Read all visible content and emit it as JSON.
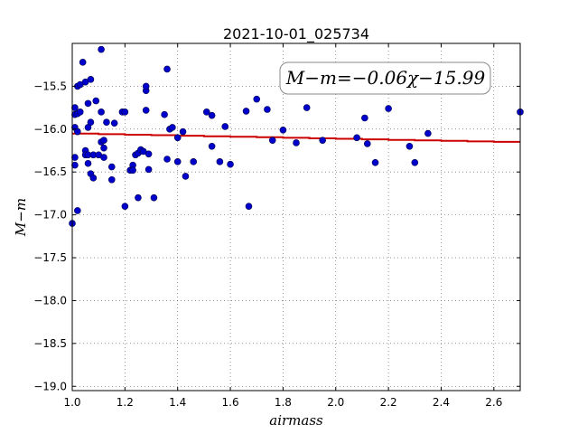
{
  "chart_data": {
    "type": "scatter",
    "title": "2021-10-01_025734",
    "xlabel": "airmass",
    "ylabel": "M−m",
    "xlim": [
      1.0,
      2.7
    ],
    "ylim": [
      -19.05,
      -15.0
    ],
    "y_inverted": true,
    "grid": true,
    "x_ticks": [
      1.0,
      1.2,
      1.4,
      1.6,
      1.8,
      2.0,
      2.2,
      2.4,
      2.6
    ],
    "x_tick_labels": [
      "1.0",
      "1.2",
      "1.4",
      "1.6",
      "1.8",
      "2.0",
      "2.2",
      "2.4",
      "2.6"
    ],
    "y_ticks": [
      -15.5,
      -16.0,
      -16.5,
      -17.0,
      -17.5,
      -18.0,
      -18.5,
      -19.0
    ],
    "y_tick_labels": [
      "−15.5",
      "−16.0",
      "−16.5",
      "−17.0",
      "−17.5",
      "−18.0",
      "−18.5",
      "−19.0"
    ],
    "annotation": "M−m=−0.06χ−15.99",
    "fit": {
      "slope": -0.06,
      "intercept": -15.99,
      "color": "#cc0000"
    },
    "point_color": "#0000cc",
    "points": [
      [
        1.0,
        -17.1
      ],
      [
        1.01,
        -15.98
      ],
      [
        1.01,
        -15.83
      ],
      [
        1.01,
        -15.75
      ],
      [
        1.01,
        -16.33
      ],
      [
        1.01,
        -16.42
      ],
      [
        1.02,
        -15.5
      ],
      [
        1.02,
        -15.82
      ],
      [
        1.02,
        -16.03
      ],
      [
        1.02,
        -16.95
      ],
      [
        1.03,
        -15.48
      ],
      [
        1.03,
        -15.8
      ],
      [
        1.04,
        -15.22
      ],
      [
        1.05,
        -16.25
      ],
      [
        1.05,
        -16.3
      ],
      [
        1.05,
        -15.45
      ],
      [
        1.06,
        -15.98
      ],
      [
        1.06,
        -15.7
      ],
      [
        1.06,
        -16.3
      ],
      [
        1.06,
        -16.4
      ],
      [
        1.07,
        -15.42
      ],
      [
        1.07,
        -16.52
      ],
      [
        1.07,
        -15.92
      ],
      [
        1.08,
        -16.57
      ],
      [
        1.08,
        -16.3
      ],
      [
        1.09,
        -15.67
      ],
      [
        1.1,
        -16.3
      ],
      [
        1.11,
        -15.07
      ],
      [
        1.11,
        -15.8
      ],
      [
        1.11,
        -16.15
      ],
      [
        1.12,
        -16.13
      ],
      [
        1.12,
        -16.22
      ],
      [
        1.12,
        -16.33
      ],
      [
        1.13,
        -15.92
      ],
      [
        1.15,
        -16.59
      ],
      [
        1.15,
        -16.44
      ],
      [
        1.16,
        -15.93
      ],
      [
        1.19,
        -15.8
      ],
      [
        1.2,
        -16.9
      ],
      [
        1.2,
        -15.8
      ],
      [
        1.22,
        -16.48
      ],
      [
        1.23,
        -16.42
      ],
      [
        1.23,
        -16.48
      ],
      [
        1.24,
        -16.3
      ],
      [
        1.25,
        -16.8
      ],
      [
        1.25,
        -16.28
      ],
      [
        1.26,
        -16.24
      ],
      [
        1.27,
        -16.26
      ],
      [
        1.28,
        -15.55
      ],
      [
        1.28,
        -15.5
      ],
      [
        1.28,
        -15.78
      ],
      [
        1.29,
        -16.29
      ],
      [
        1.29,
        -16.47
      ],
      [
        1.31,
        -16.8
      ],
      [
        1.35,
        -15.83
      ],
      [
        1.36,
        -15.3
      ],
      [
        1.36,
        -16.35
      ],
      [
        1.37,
        -16.0
      ],
      [
        1.38,
        -15.98
      ],
      [
        1.4,
        -16.1
      ],
      [
        1.4,
        -16.38
      ],
      [
        1.42,
        -16.03
      ],
      [
        1.43,
        -16.55
      ],
      [
        1.46,
        -16.38
      ],
      [
        1.51,
        -15.8
      ],
      [
        1.53,
        -16.2
      ],
      [
        1.53,
        -15.84
      ],
      [
        1.56,
        -16.38
      ],
      [
        1.58,
        -15.97
      ],
      [
        1.6,
        -16.41
      ],
      [
        1.66,
        -15.79
      ],
      [
        1.67,
        -16.9
      ],
      [
        1.7,
        -15.65
      ],
      [
        1.74,
        -15.77
      ],
      [
        1.76,
        -16.13
      ],
      [
        1.8,
        -16.01
      ],
      [
        1.85,
        -16.16
      ],
      [
        1.89,
        -15.75
      ],
      [
        1.95,
        -16.13
      ],
      [
        2.08,
        -16.1
      ],
      [
        2.11,
        -15.87
      ],
      [
        2.12,
        -16.17
      ],
      [
        2.15,
        -16.39
      ],
      [
        2.2,
        -15.76
      ],
      [
        2.28,
        -16.2
      ],
      [
        2.3,
        -16.39
      ],
      [
        2.35,
        -16.05
      ],
      [
        2.7,
        -15.8
      ]
    ]
  }
}
